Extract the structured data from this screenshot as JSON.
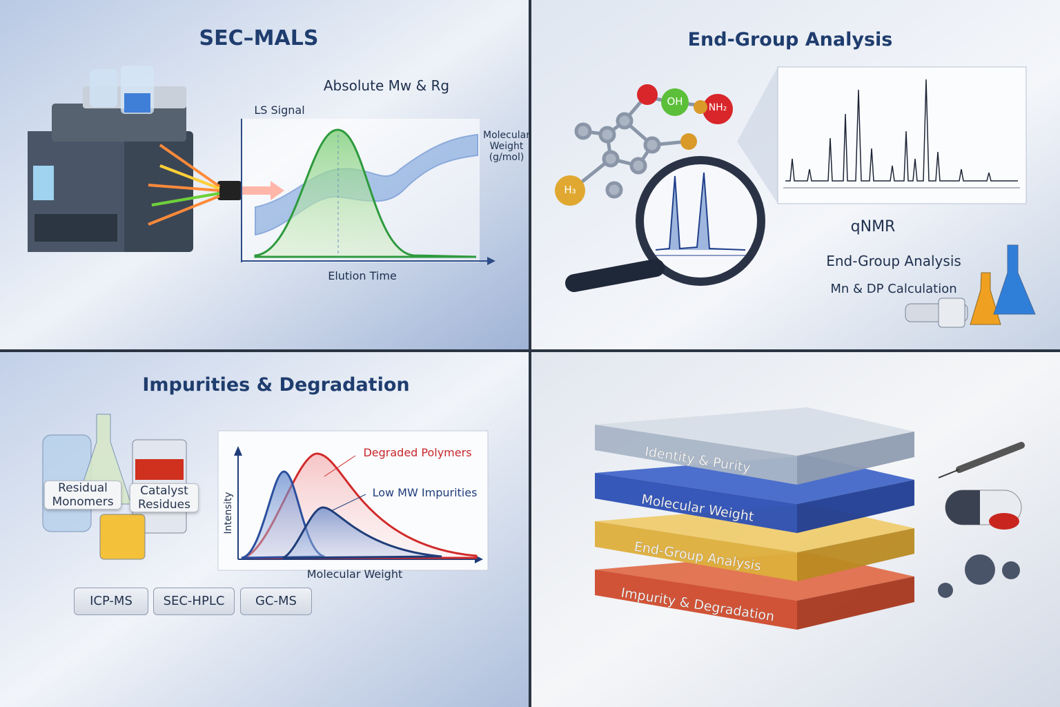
{
  "sec_mals": {
    "title": "SEC–MALS",
    "subtitle": "Absolute Mw & Rg",
    "y_label": "LS Signal",
    "y2_label": "Molecular Weight (g/mol)",
    "x_label": "Elution Time"
  },
  "end_group": {
    "title": "End-Group Analysis",
    "atoms": [
      "OH",
      "NH₂",
      "H₃"
    ],
    "labels": [
      "qNMR",
      "End-Group Analysis",
      "Mn & DP Calculation"
    ]
  },
  "impurities": {
    "title": "Impurities & Degradation",
    "samples": [
      "Residual Monomers",
      "Catalyst Residues"
    ],
    "series": [
      "Degraded Polymers",
      "Low MW Impurities"
    ],
    "y_label": "Intensity",
    "x_label": "Molecular Weight",
    "methods": [
      "ICP-MS",
      "SEC-HPLC",
      "GC-MS"
    ]
  },
  "layers": {
    "items": [
      "Identity & Purity",
      "Molecular Weight",
      "End-Group Analysis",
      "Impurity & Degradation"
    ]
  }
}
